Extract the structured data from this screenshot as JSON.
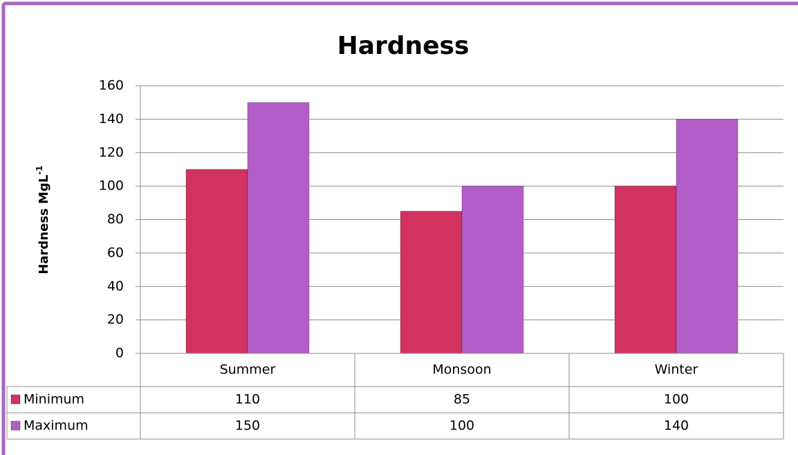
{
  "chart_data": {
    "type": "bar",
    "title": "Hardness",
    "y_label": {
      "text": "Hardness MgL",
      "superscript": "-1"
    },
    "categories": [
      "Summer",
      "Monsoon",
      "Winter"
    ],
    "series": [
      {
        "name": "Minimum",
        "color": "#d2325f",
        "values": [
          110,
          85,
          100
        ]
      },
      {
        "name": "Maximum",
        "color": "#b35ec8",
        "values": [
          150,
          100,
          140
        ]
      }
    ],
    "ylim": [
      0,
      160
    ],
    "yticks": [
      0,
      20,
      40,
      60,
      80,
      100,
      120,
      140,
      160
    ],
    "grid": true,
    "data_table": true
  }
}
